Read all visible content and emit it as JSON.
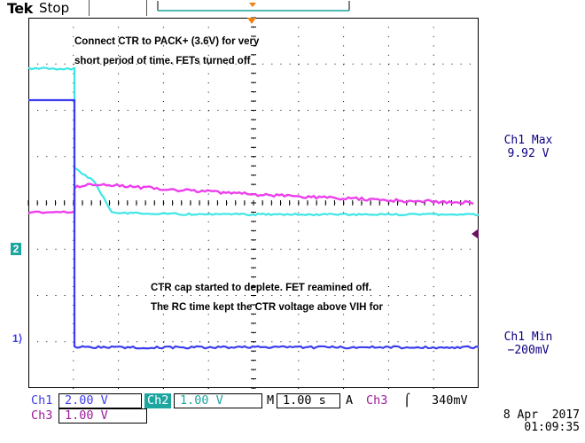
{
  "header": {
    "brand": "Tek",
    "run_state": "Stop"
  },
  "annotations": {
    "top_note": "Connect CTR to PACK+ (3.6V) for very\nshort period of time. FETs turned off",
    "bottom_note": "CTR cap started to deplete. FET reamined off.\nThe RC time kept the CTR voltage above VIH for"
  },
  "measurements": {
    "max_label": "Ch1 Max",
    "max_value": "9.92 V",
    "min_label": "Ch1 Min",
    "min_value": "−200mV"
  },
  "ground_markers": {
    "ch2": "2",
    "ch1": "1"
  },
  "settings": {
    "ch1_label": "Ch1",
    "ch1_scale": "2.00 V",
    "ch2_label": "Ch2",
    "ch2_scale": "1.00 V",
    "timebase_label": "M",
    "timebase": "1.00 s",
    "trigger_label": "A",
    "trigger_source": "Ch3",
    "trigger_slope": "⌠",
    "trigger_level": "340mV",
    "ch3_label": "Ch3",
    "ch3_scale": "1.00 V"
  },
  "timestamp": {
    "date": "8 Apr  2017",
    "time": "01:09:35"
  },
  "colors": {
    "ch1": "#3d3dee",
    "ch2": "#3fe6e6",
    "ch3": "#ee3fee",
    "grid": "#000000",
    "trigger": "#f08010"
  },
  "traces": {
    "ch1": {
      "pre_level_div": 6.22,
      "post_level_div": 0.08
    },
    "ch2": {
      "pre_level_div": 6.9,
      "drop_to_div": 4.2,
      "final_level_div": 3.75
    },
    "ch3": {
      "pre_level_div": 3.8,
      "start_level_div": 4.45,
      "end_level_div": 4.0
    }
  }
}
